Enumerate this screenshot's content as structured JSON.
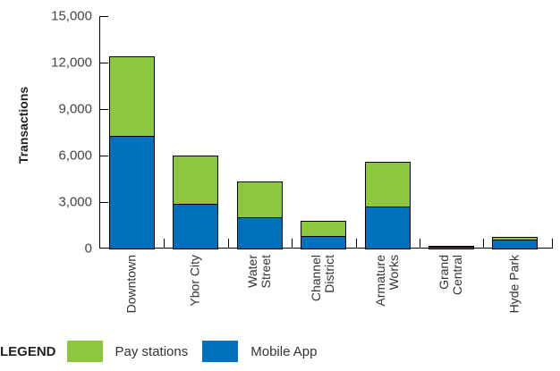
{
  "chart_data": {
    "type": "bar",
    "stacked": true,
    "title": "",
    "xlabel": "",
    "ylabel": "Transactions",
    "ylim": [
      0,
      15000
    ],
    "yticks": [
      "0",
      "3,000",
      "6,000",
      "9,000",
      "12,000",
      "15,000"
    ],
    "ytick_values": [
      0,
      3000,
      6000,
      9000,
      12000,
      15000
    ],
    "categories": [
      "Downtown",
      "Ybor City",
      "Water\nStreet",
      "Channel\nDistrict",
      "Armature\nWorks",
      "Grand\nCentral",
      "Hyde Park"
    ],
    "series": [
      {
        "name": "Mobile App",
        "color": "#0070BA",
        "values": [
          7270,
          2890,
          2020,
          810,
          2710,
          150,
          580
        ]
      },
      {
        "name": "Pay stations",
        "color": "#8DC63F",
        "values": [
          5130,
          3110,
          2310,
          980,
          2890,
          20,
          170
        ]
      }
    ],
    "totals": [
      12400,
      6000,
      4330,
      1790,
      5600,
      170,
      750
    ],
    "grid": false,
    "legend_position": "bottom-left"
  },
  "legend": {
    "title": "LEGEND",
    "items": [
      {
        "label": "Pay stations",
        "color": "#8DC63F"
      },
      {
        "label": "Mobile App",
        "color": "#0070BA"
      }
    ]
  }
}
